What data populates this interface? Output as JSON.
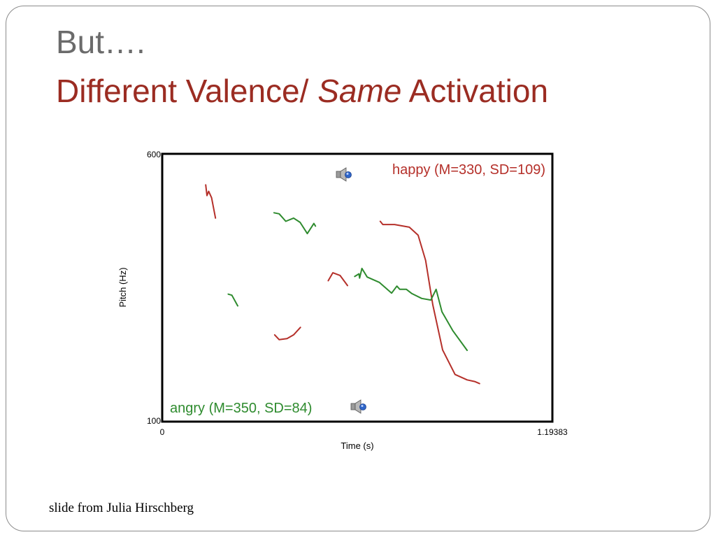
{
  "slide": {
    "title_line1": "But….",
    "title_line2_part1": "Different Valence/ ",
    "title_line2_emphasis": "Same",
    "title_line2_part2": " Activation",
    "credit": "slide from Julia Hirschberg"
  },
  "colors": {
    "title_gray": "#6b6b6b",
    "title_red": "#9b2c22",
    "happy": "#b5302a",
    "angry": "#2e8b2e"
  },
  "chart_data": {
    "type": "line",
    "xlabel": "Time (s)",
    "ylabel": "Pitch (Hz)",
    "xlim": [
      0,
      1.19383
    ],
    "ylim": [
      100,
      600
    ],
    "x_tick_labels": [
      "0",
      "1.19383"
    ],
    "y_tick_labels": [
      "100",
      "600"
    ],
    "grid": false,
    "speaker_icon": "speaker-icon",
    "series": [
      {
        "name": "happy (M=330, SD=109)",
        "color": "#b5302a",
        "segments": [
          [
            [
              0.133,
              542
            ],
            [
              0.137,
              522
            ],
            [
              0.142,
              530
            ],
            [
              0.151,
              518
            ],
            [
              0.163,
              480
            ]
          ],
          [
            [
              0.344,
              262
            ],
            [
              0.358,
              253
            ],
            [
              0.382,
              255
            ],
            [
              0.402,
              262
            ],
            [
              0.423,
              276
            ]
          ],
          [
            [
              0.508,
              363
            ],
            [
              0.522,
              378
            ],
            [
              0.544,
              373
            ],
            [
              0.567,
              354
            ]
          ],
          [
            [
              0.667,
              474
            ],
            [
              0.675,
              468
            ],
            [
              0.711,
              468
            ],
            [
              0.756,
              463
            ],
            [
              0.783,
              448
            ],
            [
              0.806,
              401
            ],
            [
              0.828,
              318
            ],
            [
              0.858,
              234
            ],
            [
              0.896,
              188
            ],
            [
              0.933,
              178
            ],
            [
              0.956,
              175
            ],
            [
              0.971,
              171
            ]
          ]
        ]
      },
      {
        "name": "angry (M=350, SD=84)",
        "color": "#2e8b2e",
        "segments": [
          [
            [
              0.202,
              338
            ],
            [
              0.213,
              336
            ],
            [
              0.231,
              316
            ]
          ],
          [
            [
              0.342,
              490
            ],
            [
              0.358,
              488
            ],
            [
              0.378,
              474
            ],
            [
              0.402,
              480
            ],
            [
              0.422,
              472
            ],
            [
              0.444,
              451
            ],
            [
              0.464,
              470
            ],
            [
              0.469,
              465
            ]
          ],
          [
            [
              0.589,
              371
            ],
            [
              0.602,
              376
            ],
            [
              0.604,
              368
            ],
            [
              0.611,
              386
            ],
            [
              0.627,
              370
            ],
            [
              0.664,
              360
            ],
            [
              0.702,
              340
            ],
            [
              0.718,
              353
            ],
            [
              0.727,
              347
            ],
            [
              0.747,
              347
            ],
            [
              0.764,
              339
            ],
            [
              0.794,
              330
            ],
            [
              0.822,
              327
            ],
            [
              0.838,
              347
            ],
            [
              0.856,
              305
            ],
            [
              0.889,
              270
            ],
            [
              0.933,
              233
            ]
          ]
        ]
      }
    ]
  }
}
